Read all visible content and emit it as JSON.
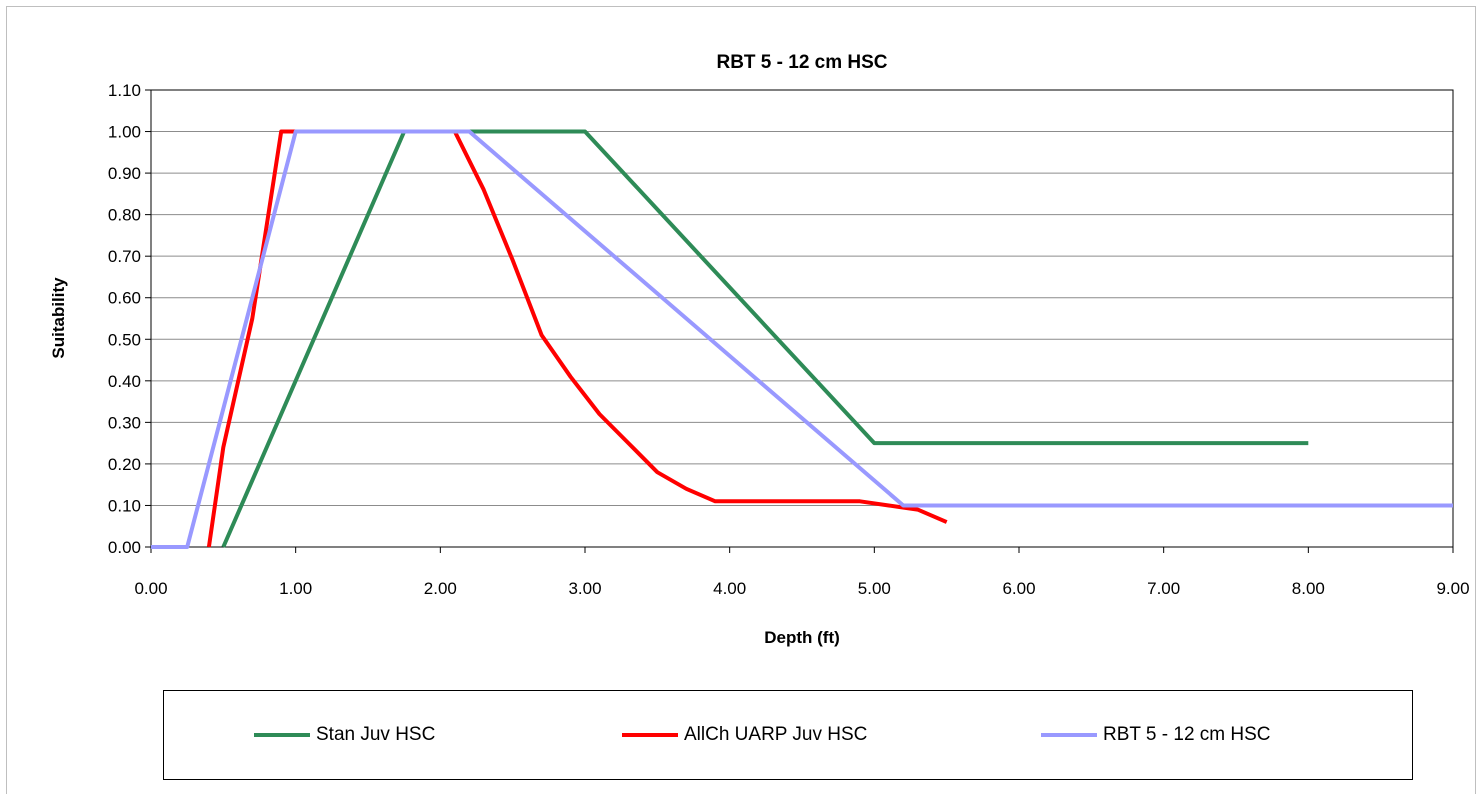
{
  "chart_data": {
    "type": "line",
    "title": "RBT 5 - 12 cm HSC",
    "xlabel": "Depth (ft)",
    "ylabel": "Suitability",
    "xlim": [
      0,
      9
    ],
    "ylim": [
      0,
      1.1
    ],
    "x_ticks": [
      "0.00",
      "1.00",
      "2.00",
      "3.00",
      "4.00",
      "5.00",
      "6.00",
      "7.00",
      "8.00",
      "9.00"
    ],
    "y_ticks": [
      "0.00",
      "0.10",
      "0.20",
      "0.30",
      "0.40",
      "0.50",
      "0.60",
      "0.70",
      "0.80",
      "0.90",
      "1.00",
      "1.10"
    ],
    "grid": "horizontal",
    "legend_position": "bottom",
    "series": [
      {
        "name": "Stan Juv HSC",
        "color": "#2e8b57",
        "points": [
          [
            0.5,
            0.0
          ],
          [
            1.75,
            1.0
          ],
          [
            3.0,
            1.0
          ],
          [
            5.0,
            0.25
          ],
          [
            8.0,
            0.25
          ]
        ]
      },
      {
        "name": "AllCh UARP Juv HSC",
        "color": "#ff0000",
        "points": [
          [
            0.4,
            0.0
          ],
          [
            0.5,
            0.24
          ],
          [
            0.7,
            0.55
          ],
          [
            0.9,
            1.0
          ],
          [
            2.1,
            1.0
          ],
          [
            2.3,
            0.86
          ],
          [
            2.5,
            0.69
          ],
          [
            2.7,
            0.51
          ],
          [
            2.9,
            0.41
          ],
          [
            3.1,
            0.32
          ],
          [
            3.3,
            0.25
          ],
          [
            3.5,
            0.18
          ],
          [
            3.7,
            0.14
          ],
          [
            3.9,
            0.11
          ],
          [
            4.9,
            0.11
          ],
          [
            5.1,
            0.1
          ],
          [
            5.3,
            0.09
          ],
          [
            5.5,
            0.06
          ]
        ]
      },
      {
        "name": "RBT 5 - 12 cm HSC",
        "color": "#9999ff",
        "points": [
          [
            0.0,
            0.0
          ],
          [
            0.25,
            0.0
          ],
          [
            1.0,
            1.0
          ],
          [
            2.2,
            1.0
          ],
          [
            5.2,
            0.1
          ],
          [
            9.0,
            0.1
          ]
        ]
      }
    ]
  }
}
